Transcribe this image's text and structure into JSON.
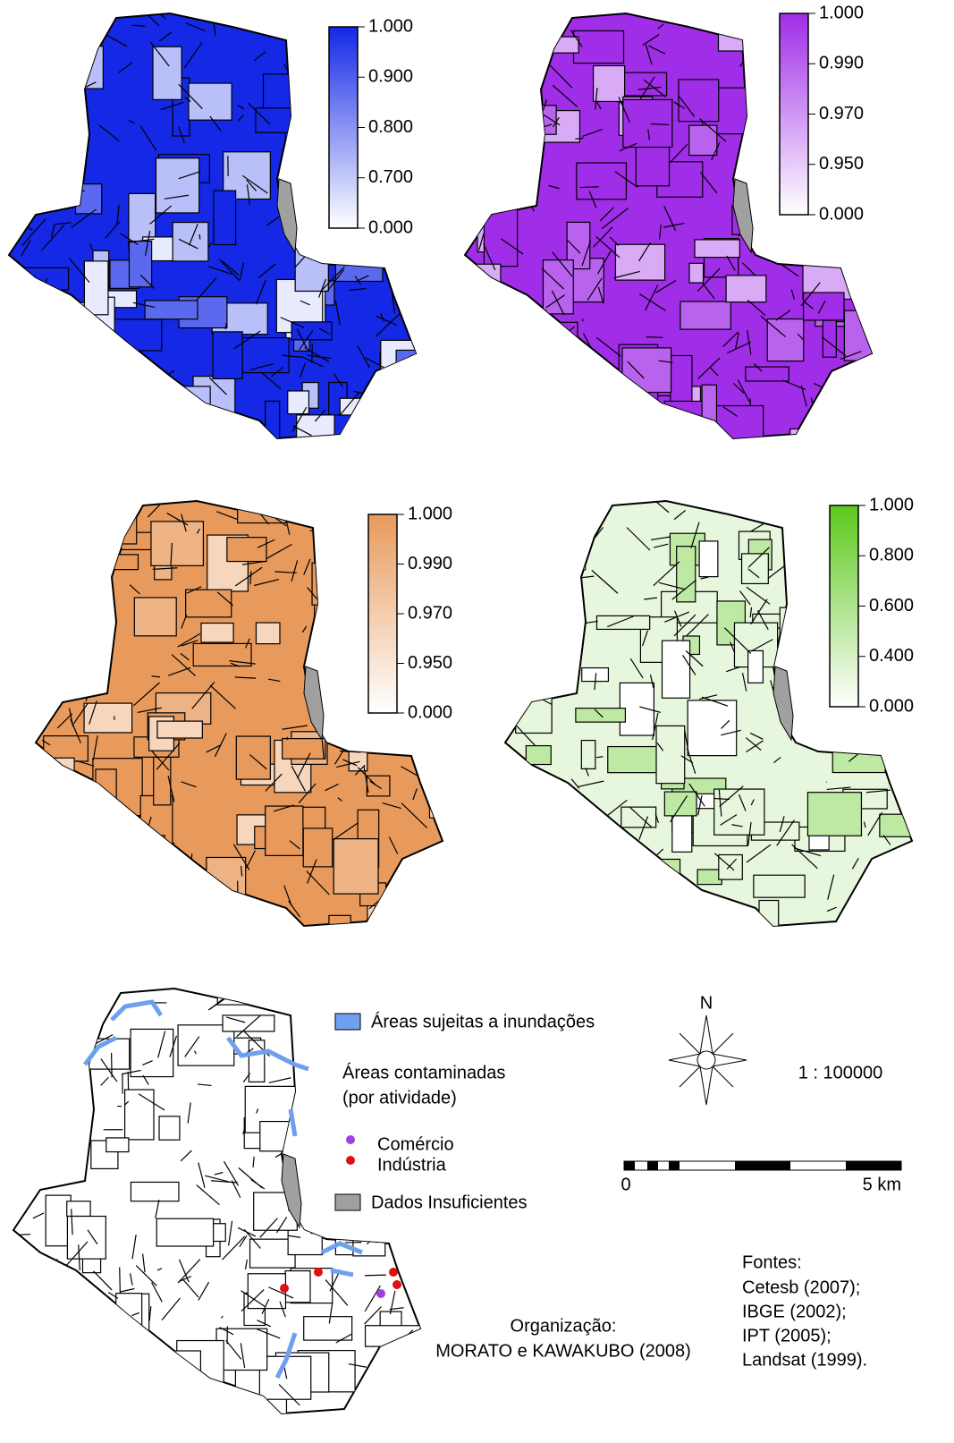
{
  "maps": [
    {
      "color": "#1428e6",
      "legend": [
        "1.000",
        "0.900",
        "0.800",
        "0.700",
        "0.000"
      ]
    },
    {
      "color": "#a02de8",
      "legend": [
        "1.000",
        "0.990",
        "0.970",
        "0.950",
        "0.000"
      ]
    },
    {
      "color": "#e89a5c",
      "legend": [
        "1.000",
        "0.990",
        "0.970",
        "0.950",
        "0.000"
      ]
    },
    {
      "color": "#5cc81a",
      "legend": [
        "1.000",
        "0.800",
        "0.600",
        "0.400",
        "0.000"
      ]
    }
  ],
  "legend": {
    "flood": "Áreas sujeitas a inundações",
    "contaminated": "Áreas contaminadas",
    "by_activity": "(por atividade)",
    "commerce": "Comércio",
    "industry": "Indústria",
    "insufficient": "Dados Insuficientes"
  },
  "compass": "N",
  "scale": "1 : 100000",
  "scalebar": {
    "start": "0",
    "end": "5 km"
  },
  "sources": {
    "title": "Fontes:",
    "items": [
      "Cetesb (2007);",
      "IBGE (2002);",
      "IPT (2005);",
      "Landsat (1999)."
    ]
  },
  "organization": {
    "title": "Organização:",
    "authors": "MORATO e KAWAKUBO (2008)"
  }
}
